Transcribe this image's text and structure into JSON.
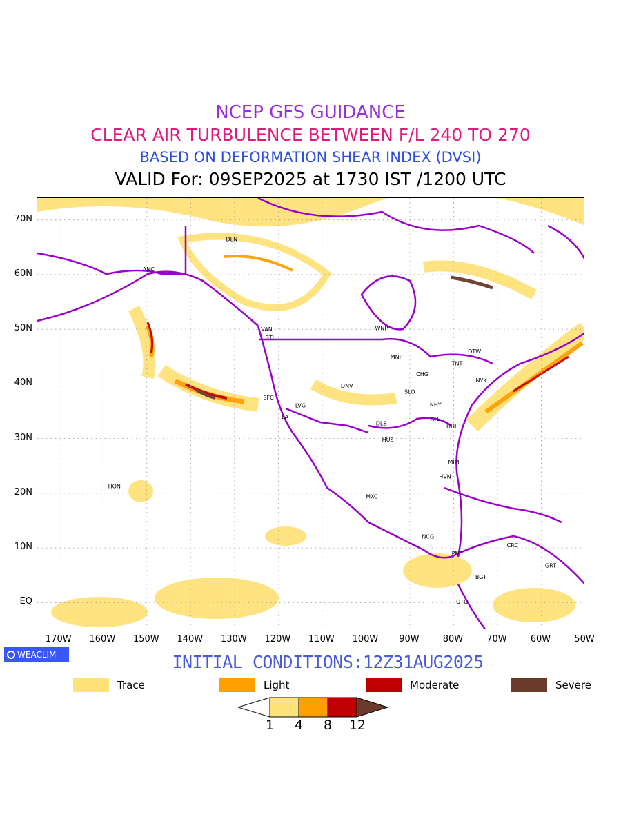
{
  "titles": {
    "line1": "NCEP GFS GUIDANCE",
    "line2": "CLEAR AIR TURBULENCE BETWEEN F/L 240 TO 270",
    "line3": "BASED ON DEFORMATION SHEAR INDEX (DVSI)",
    "line4": "VALID For: 09SEP2025 at 1730 IST /1200 UTC"
  },
  "colors": {
    "line1": "#9b2fd6",
    "line2": "#e0197d",
    "line3": "#2f4fe0",
    "line4": "#000000",
    "trace": "#ffe27a",
    "light": "#ff9f00",
    "moderate": "#c00000",
    "severe": "#6b3a2a",
    "boundaries": "#9a00c8"
  },
  "map": {
    "lat_labels": [
      "70N",
      "60N",
      "50N",
      "40N",
      "30N",
      "20N",
      "10N",
      "EQ"
    ],
    "lon_labels": [
      "170W",
      "160W",
      "150W",
      "140W",
      "130W",
      "120W",
      "110W",
      "100W",
      "90W",
      "80W",
      "70W",
      "60W",
      "50W"
    ],
    "stations": [
      {
        "name": "ANC"
      },
      {
        "name": "DLN"
      },
      {
        "name": "VAN"
      },
      {
        "name": "STL"
      },
      {
        "name": "WNP"
      },
      {
        "name": "MNP"
      },
      {
        "name": "OTW"
      },
      {
        "name": "TNT"
      },
      {
        "name": "CHG"
      },
      {
        "name": "NYK"
      },
      {
        "name": "DNV"
      },
      {
        "name": "SFC"
      },
      {
        "name": "LVG"
      },
      {
        "name": "LA"
      },
      {
        "name": "SLO"
      },
      {
        "name": "NHY"
      },
      {
        "name": "ATL"
      },
      {
        "name": "DLS"
      },
      {
        "name": "HHI"
      },
      {
        "name": "HUS"
      },
      {
        "name": "MIM"
      },
      {
        "name": "HVN"
      },
      {
        "name": "HON"
      },
      {
        "name": "MXC"
      },
      {
        "name": "NCG"
      },
      {
        "name": "CRC"
      },
      {
        "name": "PNC"
      },
      {
        "name": "GRT"
      },
      {
        "name": "BGT"
      },
      {
        "name": "QTO"
      }
    ]
  },
  "badge": {
    "label": "WEACLIM",
    "icon": "circle-logo-icon"
  },
  "initial_conditions": "INITIAL CONDITIONS:12Z31AUG2025",
  "legend": {
    "items": [
      {
        "label": "Trace"
      },
      {
        "label": "Light"
      },
      {
        "label": "Moderate"
      },
      {
        "label": "Severe"
      }
    ],
    "colorbar_ticks": [
      "1",
      "4",
      "8",
      "12"
    ]
  }
}
